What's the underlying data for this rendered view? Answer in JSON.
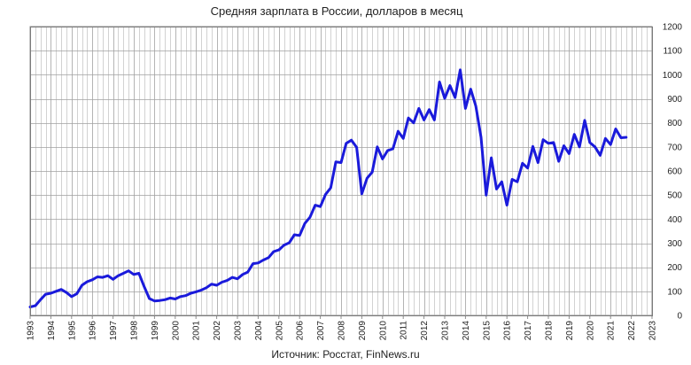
{
  "chart_data": {
    "type": "line",
    "title": "Средняя зарплата в России, долларов в месяц",
    "source": "Источник: Росстат, FinNews.ru",
    "xlabel": "",
    "ylabel": "",
    "xlim": [
      1993,
      2023
    ],
    "ylim": [
      0,
      1200
    ],
    "grid": true,
    "x_ticks": [
      "1993",
      "1994",
      "1995",
      "1996",
      "1997",
      "1998",
      "1999",
      "2000",
      "2001",
      "2002",
      "2003",
      "2004",
      "2005",
      "2006",
      "2007",
      "2008",
      "2009",
      "2010",
      "2011",
      "2012",
      "2013",
      "2014",
      "2015",
      "2016",
      "2017",
      "2018",
      "2019",
      "2020",
      "2021",
      "2022",
      "2023"
    ],
    "y_ticks": [
      "0",
      "100",
      "200",
      "300",
      "400",
      "500",
      "600",
      "700",
      "800",
      "900",
      "1000",
      "1100",
      "1200"
    ],
    "line_color": "#1a1adb",
    "series": [
      {
        "x": [
          1993.0,
          1993.25,
          1993.5,
          1993.75,
          1994.0,
          1994.25,
          1994.5,
          1994.75,
          1995.0,
          1995.25,
          1995.5,
          1995.75,
          1996.0,
          1996.25,
          1996.5,
          1996.75,
          1997.0,
          1997.25,
          1997.5,
          1997.75,
          1998.0,
          1998.25,
          1998.5,
          1998.75,
          1999.0,
          1999.25,
          1999.5,
          1999.75,
          2000.0,
          2000.25,
          2000.5,
          2000.75,
          2001.0,
          2001.25,
          2001.5,
          2001.75,
          2002.0,
          2002.25,
          2002.5,
          2002.75,
          2003.0,
          2003.25,
          2003.5,
          2003.75,
          2004.0,
          2004.25,
          2004.5,
          2004.75,
          2005.0,
          2005.25,
          2005.5,
          2005.75,
          2006.0,
          2006.25,
          2006.5,
          2006.75,
          2007.0,
          2007.25,
          2007.5,
          2007.75,
          2008.0,
          2008.25,
          2008.5,
          2008.75,
          2009.0,
          2009.25,
          2009.5,
          2009.75,
          2010.0,
          2010.25,
          2010.5,
          2010.75,
          2011.0,
          2011.25,
          2011.5,
          2011.75,
          2012.0,
          2012.25,
          2012.5,
          2012.75,
          2013.0,
          2013.25,
          2013.5,
          2013.75,
          2014.0,
          2014.25,
          2014.5,
          2014.75,
          2015.0,
          2015.25,
          2015.5,
          2015.75,
          2016.0,
          2016.25,
          2016.5,
          2016.75,
          2017.0,
          2017.25,
          2017.5,
          2017.75,
          2018.0,
          2018.25,
          2018.5,
          2018.75,
          2019.0,
          2019.25,
          2019.5,
          2019.75,
          2020.0,
          2020.25,
          2020.5,
          2020.75,
          2021.0,
          2021.25,
          2021.5,
          2021.75
        ],
        "values": [
          35,
          40,
          65,
          88,
          92,
          100,
          108,
          95,
          78,
          90,
          125,
          140,
          148,
          160,
          158,
          165,
          150,
          165,
          175,
          185,
          170,
          175,
          120,
          70,
          60,
          62,
          65,
          72,
          68,
          78,
          82,
          92,
          98,
          105,
          115,
          130,
          125,
          138,
          145,
          158,
          152,
          170,
          180,
          215,
          218,
          230,
          240,
          265,
          272,
          292,
          302,
          335,
          332,
          382,
          408,
          458,
          452,
          502,
          530,
          638,
          635,
          715,
          728,
          698,
          505,
          570,
          595,
          700,
          650,
          685,
          692,
          765,
          735,
          820,
          800,
          860,
          812,
          855,
          812,
          970,
          902,
          955,
          905,
          1020,
          860,
          940,
          870,
          740,
          500,
          655,
          525,
          555,
          458,
          565,
          555,
          632,
          612,
          702,
          635,
          730,
          715,
          718,
          640,
          705,
          672,
          752,
          700,
          810,
          718,
          700,
          665,
          735,
          710,
          775,
          738,
          740
        ]
      }
    ]
  }
}
